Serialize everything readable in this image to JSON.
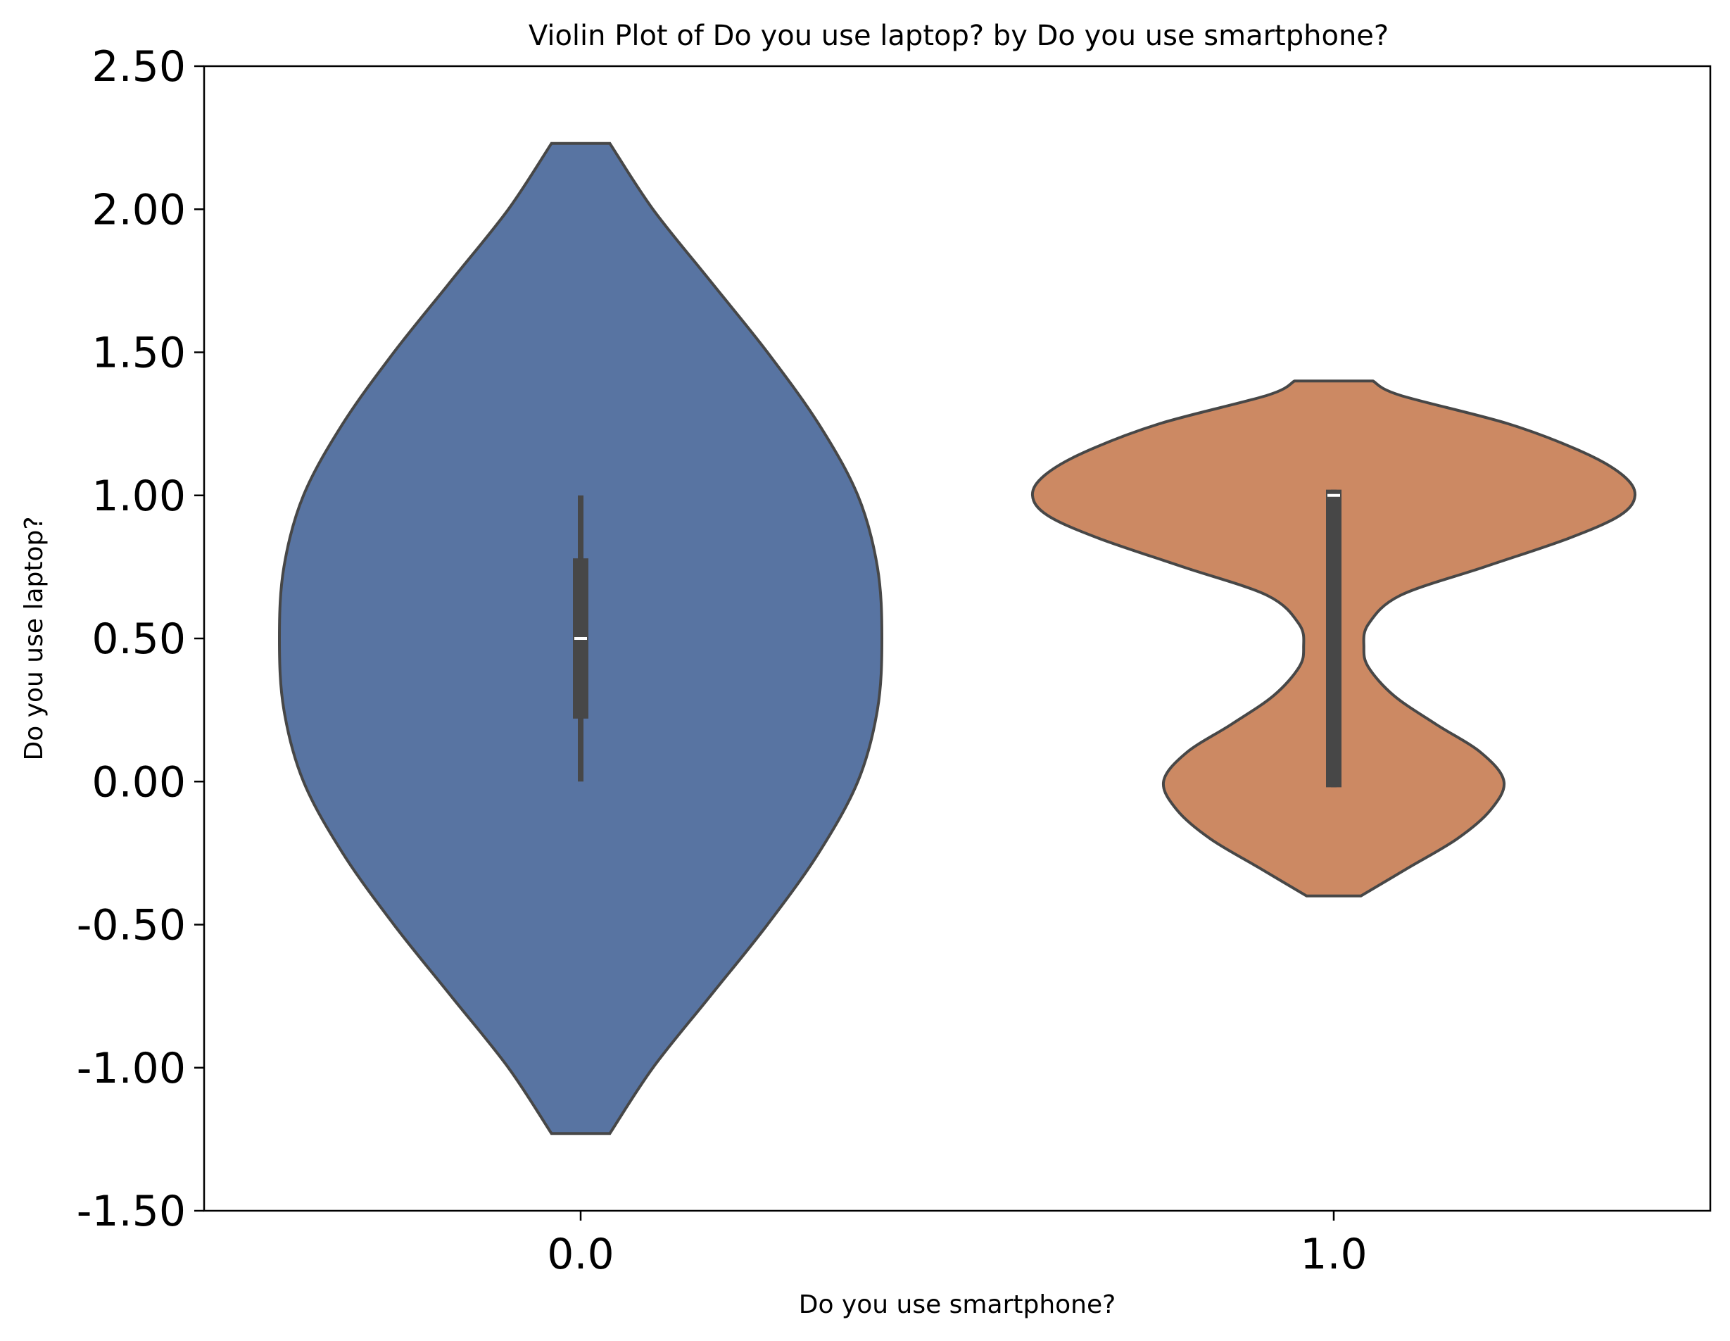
{
  "chart_data": {
    "type": "violin",
    "title": "Violin Plot of Do you use laptop? by Do you use smartphone?",
    "xlabel": "Do you use smartphone?",
    "ylabel": "Do you use laptop?",
    "ylim": [
      -1.5,
      2.5
    ],
    "yticks": [
      "-1.50",
      "-1.00",
      "-0.50",
      "0.00",
      "0.50",
      "1.00",
      "1.50",
      "2.00",
      "2.50"
    ],
    "categories": [
      "0.0",
      "1.0"
    ],
    "grid": false,
    "legend": "none",
    "violins": [
      {
        "category": "0.0",
        "color": "#5874a2",
        "y_min": -1.23,
        "y_max": 2.23,
        "whisker_low": 0.0,
        "q1": 0.22,
        "median": 0.5,
        "q3": 0.78,
        "whisker_high": 1.0,
        "density": [
          [
            -1.23,
            0.097
          ],
          [
            -1.0,
            0.24
          ],
          [
            -0.75,
            0.43
          ],
          [
            -0.5,
            0.62
          ],
          [
            -0.25,
            0.79
          ],
          [
            0.0,
            0.92
          ],
          [
            0.25,
            0.985
          ],
          [
            0.5,
            1.0
          ],
          [
            0.75,
            0.985
          ],
          [
            1.0,
            0.92
          ],
          [
            1.25,
            0.79
          ],
          [
            1.5,
            0.62
          ],
          [
            1.75,
            0.43
          ],
          [
            2.0,
            0.24
          ],
          [
            2.23,
            0.097
          ]
        ]
      },
      {
        "category": "1.0",
        "color": "#cc8963",
        "y_min": -0.4,
        "y_max": 1.4,
        "whisker_low": -0.02,
        "q1": -0.02,
        "median": 1.0,
        "q3": 1.02,
        "whisker_high": 1.02,
        "density": [
          [
            -0.4,
            0.09
          ],
          [
            -0.3,
            0.25
          ],
          [
            -0.2,
            0.41
          ],
          [
            -0.1,
            0.52
          ],
          [
            0.0,
            0.565
          ],
          [
            0.1,
            0.49
          ],
          [
            0.2,
            0.34
          ],
          [
            0.3,
            0.2
          ],
          [
            0.4,
            0.115
          ],
          [
            0.47,
            0.1
          ],
          [
            0.55,
            0.115
          ],
          [
            0.65,
            0.22
          ],
          [
            0.75,
            0.5
          ],
          [
            0.85,
            0.78
          ],
          [
            0.93,
            0.95
          ],
          [
            1.0,
            1.0
          ],
          [
            1.07,
            0.96
          ],
          [
            1.15,
            0.83
          ],
          [
            1.25,
            0.58
          ],
          [
            1.35,
            0.22
          ],
          [
            1.4,
            0.13
          ]
        ]
      }
    ]
  }
}
